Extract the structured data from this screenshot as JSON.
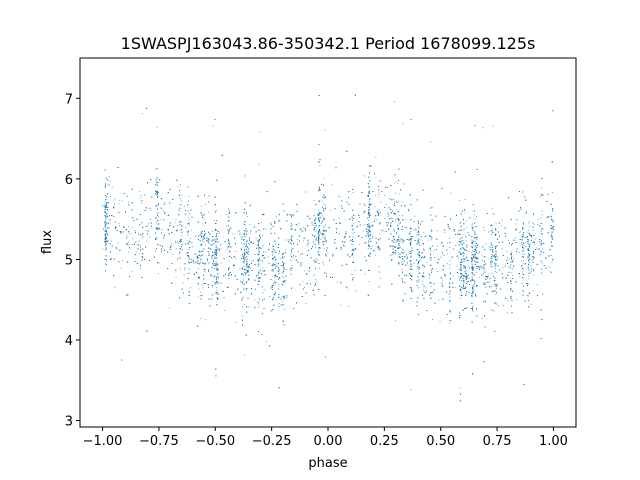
{
  "chart_data": {
    "type": "scatter",
    "title": "1SWASPJ163043.86-350342.1 Period 1678099.125s",
    "xlabel": "phase",
    "ylabel": "flux",
    "xlim": [
      -1.1,
      1.1
    ],
    "ylim": [
      2.92,
      7.5
    ],
    "xticks": [
      -1.0,
      -0.75,
      -0.5,
      -0.25,
      0.0,
      0.25,
      0.5,
      0.75,
      1.0
    ],
    "xtick_labels": [
      "−1.00",
      "−0.75",
      "−0.50",
      "−0.25",
      "0.00",
      "0.25",
      "0.50",
      "0.75",
      "1.00"
    ],
    "yticks": [
      3,
      4,
      5,
      6,
      7
    ],
    "ytick_labels": [
      "3",
      "4",
      "5",
      "6",
      "7"
    ],
    "grid": false,
    "legend": "none",
    "marker_color": "#1f77b4",
    "series": [
      {
        "phase_points": [
          -1.0,
          -0.95,
          -0.9,
          -0.85,
          -0.8,
          -0.75,
          -0.7,
          -0.65,
          -0.6,
          -0.55,
          -0.5,
          -0.45,
          -0.4,
          -0.35,
          -0.3,
          -0.25,
          -0.2,
          -0.15,
          -0.1,
          -0.05,
          0.0
        ],
        "mean_flux": [
          5.45,
          5.35,
          5.25,
          5.3,
          5.45,
          5.5,
          5.35,
          5.25,
          5.05,
          4.98,
          4.95,
          5.0,
          4.98,
          5.0,
          5.02,
          5.0,
          4.95,
          5.1,
          5.15,
          5.25,
          5.35
        ],
        "note_symmetric": "light curve repeats for phase 0 to 1 (phase folded twice)"
      }
    ]
  }
}
